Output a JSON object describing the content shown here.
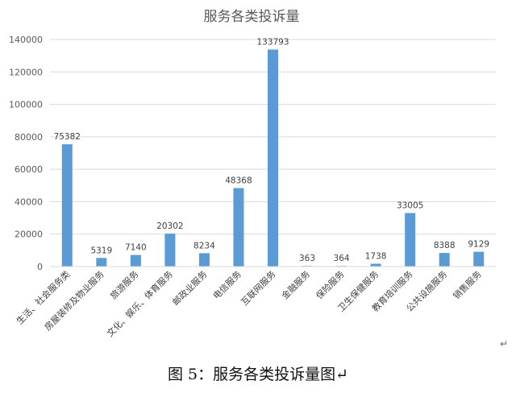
{
  "chart_data": {
    "type": "bar",
    "title": "服务各类投诉量",
    "categories": [
      "生活、社会服务类",
      "房屋装修及物业服务",
      "旅游服务",
      "文化、娱乐、体育服务",
      "邮政业服务",
      "电信服务",
      "互联网服务",
      "金融服务",
      "保险服务",
      "卫生保健服务",
      "教育培训服务",
      "公共设施服务",
      "销售服务"
    ],
    "values": [
      75382,
      5319,
      7140,
      20302,
      8234,
      48368,
      133793,
      363,
      364,
      1738,
      33005,
      8388,
      9129
    ],
    "data_labels": [
      "75382",
      "5319",
      "7140",
      "20302",
      "8234",
      "48368",
      "133793",
      "363",
      "364",
      "1738",
      "33005",
      "8388",
      "9129"
    ],
    "y_ticks": [
      "0",
      "20000",
      "40000",
      "60000",
      "80000",
      "100000",
      "120000",
      "140000"
    ],
    "ylim": [
      0,
      140000
    ],
    "grid": true,
    "bar_color": "#5b9bd5",
    "xlabel": "",
    "ylabel": ""
  },
  "caption": "图 5：服务各类投诉量图↵",
  "side_mark": "↵"
}
